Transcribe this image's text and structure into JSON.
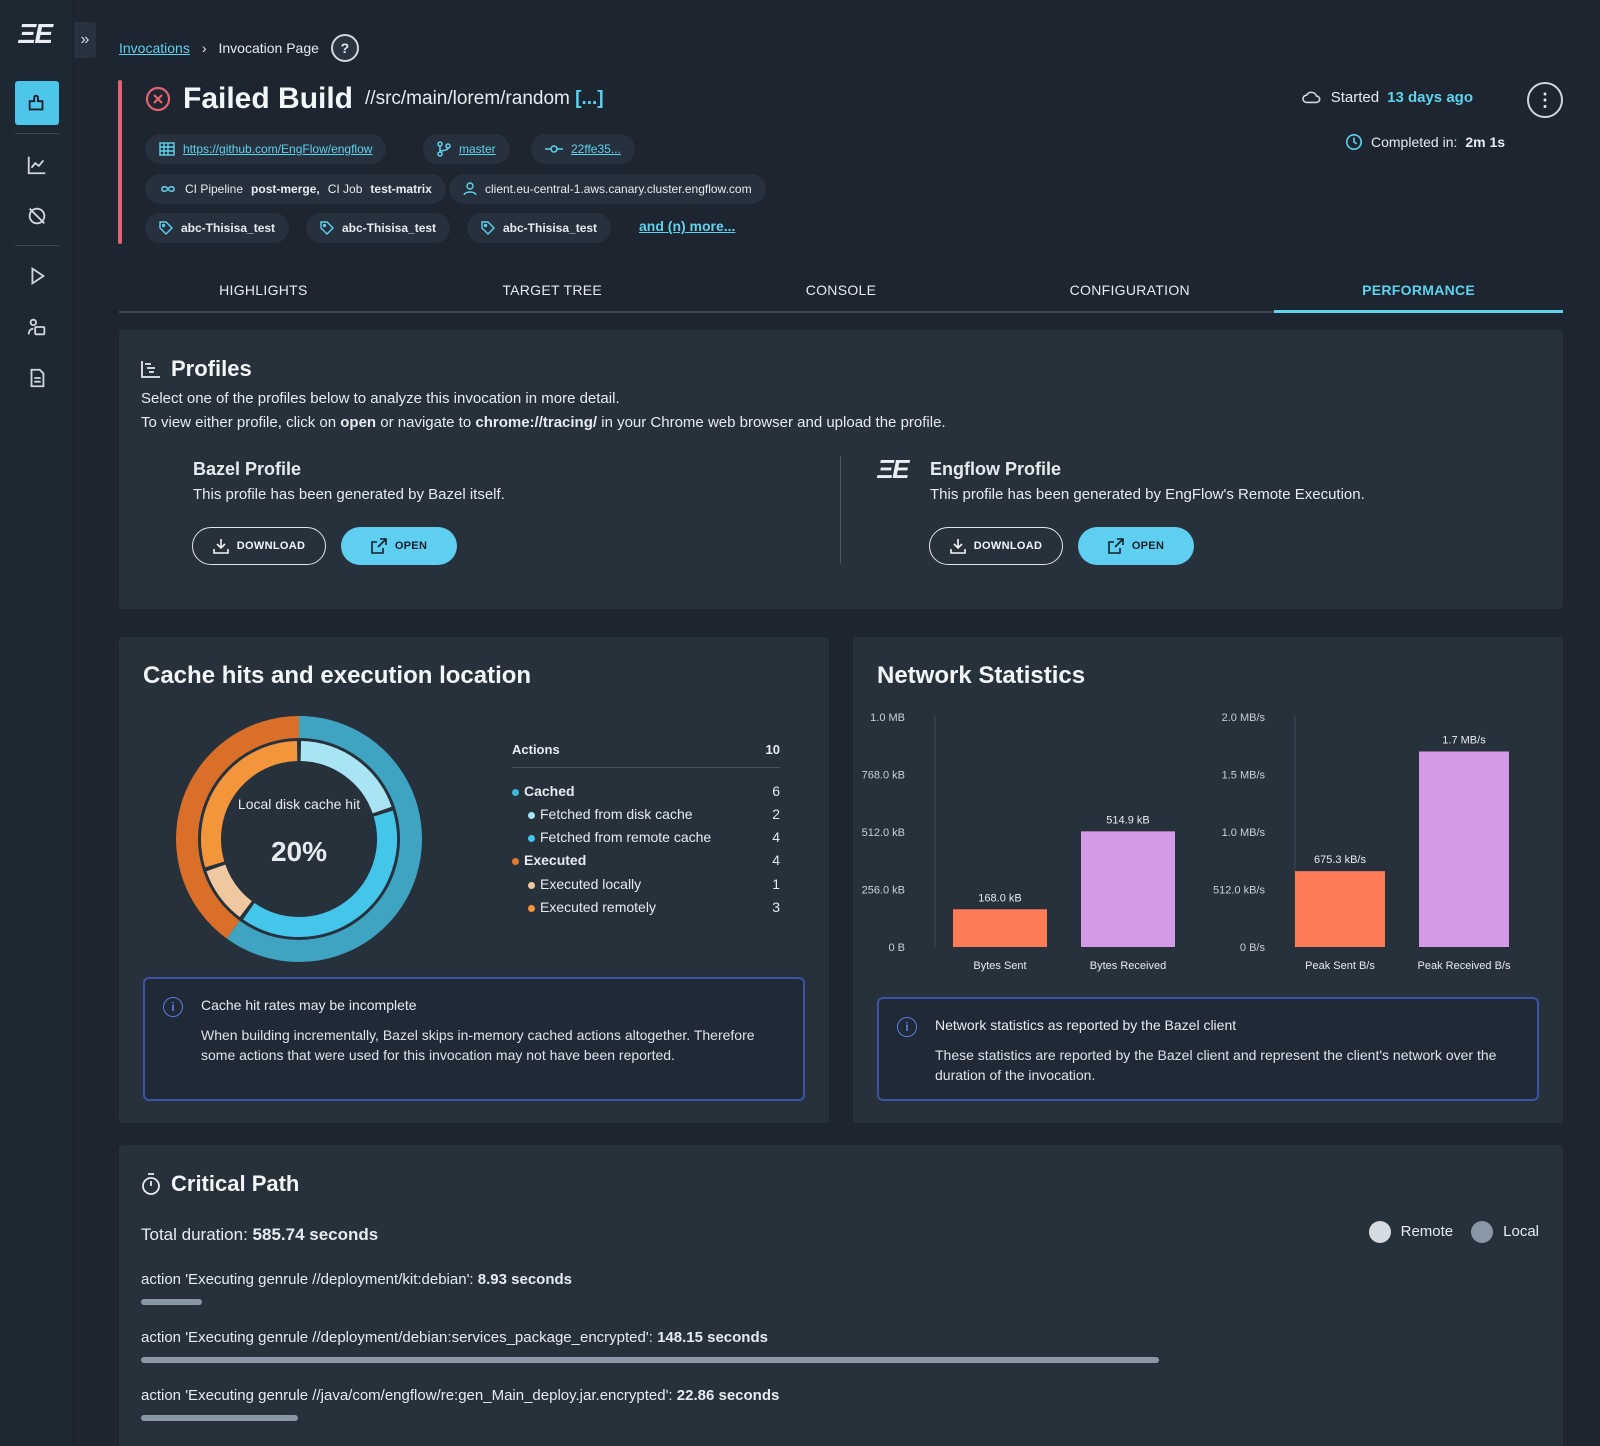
{
  "app": {
    "logo": "ΞE"
  },
  "breadcrumb": {
    "link": "Invocations",
    "current": "Invocation Page",
    "help": "?"
  },
  "header": {
    "title": "Failed Build",
    "path": "//src/main/lorem/random",
    "path_more": "[...]",
    "started_label": "Started",
    "started_value": "13 days ago",
    "completed_label": "Completed in:",
    "completed_value": "2m 1s",
    "repo_url": "https://github.com/EngFlow/engflow",
    "branch": "master",
    "commit": "22ffe35...",
    "ci_text_1": "CI Pipeline",
    "ci_pipeline": "post-merge,",
    "ci_text_2": "CI Job",
    "ci_job": "test-matrix",
    "client": "client.eu-central-1.aws.canary.cluster.engflow.com",
    "tags": [
      "abc-Thisisa_test",
      "abc-Thisisa_test",
      "abc-Thisisa_test"
    ],
    "more_tags": "and (n) more..."
  },
  "tabs": [
    "HIGHLIGHTS",
    "TARGET TREE",
    "CONSOLE",
    "CONFIGURATION",
    "PERFORMANCE"
  ],
  "profiles": {
    "title": "Profiles",
    "line1": "Select one of the profiles below to analyze this invocation in more detail.",
    "line2_a": "To view either profile, click on",
    "line2_b": "open",
    "line2_c": "or navigate to",
    "line2_d": "chrome://tracing/",
    "line2_e": "in your Chrome web browser and upload the profile.",
    "bazel_title": "Bazel Profile",
    "bazel_desc": "This profile has been generated by Bazel itself.",
    "engflow_title": "Engflow Profile",
    "engflow_desc": "This profile has been generated by EngFlow's Remote Execution.",
    "download": "DOWNLOAD",
    "open": "OPEN"
  },
  "cache": {
    "title": "Cache hits and execution location",
    "donut_label": "Local disk cache hit",
    "donut_value": "20%",
    "actions_label": "Actions",
    "actions_total": "10",
    "rows": [
      {
        "label": "Cached",
        "value": "6",
        "bold": true,
        "color": "#3fb7d8"
      },
      {
        "label": "Fetched from disk cache",
        "value": "2",
        "bold": false,
        "color": "#a8e4f4"
      },
      {
        "label": "Fetched from remote cache",
        "value": "4",
        "bold": false,
        "color": "#43c6ea"
      },
      {
        "label": "Executed",
        "value": "4",
        "bold": true,
        "color": "#e07a2e"
      },
      {
        "label": "Executed locally",
        "value": "1",
        "bold": false,
        "color": "#f0c8a0"
      },
      {
        "label": "Executed remotely",
        "value": "3",
        "bold": false,
        "color": "#f3953a"
      }
    ],
    "info_title": "Cache hit rates may be incomplete",
    "info_body": "When building incrementally, Bazel skips in-memory cached actions altogether. Therefore some actions that were used for this invocation may not have been reported."
  },
  "network": {
    "title": "Network Statistics",
    "info_title": "Network statistics as reported by the Bazel client",
    "info_body": "These statistics are reported by the Bazel client and represent the client's network over the duration of the invocation."
  },
  "chart_data": [
    {
      "type": "bar",
      "categories": [
        "Bytes Sent",
        "Bytes Received"
      ],
      "values": [
        168.0,
        514.9
      ],
      "value_unit": "kB",
      "data_labels": [
        "168.0 kB",
        "514.9 kB"
      ],
      "colors": [
        "#ff7a57",
        "#d49ae6"
      ],
      "yticks": [
        "0 B",
        "256.0 kB",
        "512.0 kB",
        "768.0 kB",
        "1.0 MB"
      ],
      "ylim": [
        0,
        1024
      ]
    },
    {
      "type": "bar",
      "categories": [
        "Peak Sent B/s",
        "Peak Received B/s"
      ],
      "values": [
        675.3,
        1740.8
      ],
      "value_unit": "kB/s",
      "data_labels": [
        "675.3 kB/s",
        "1.7 MB/s"
      ],
      "colors": [
        "#ff7a57",
        "#d49ae6"
      ],
      "yticks": [
        "0 B/s",
        "512.0 kB/s",
        "1.0 MB/s",
        "1.5 MB/s",
        "2.0 MB/s"
      ],
      "ylim": [
        0,
        2048
      ]
    }
  ],
  "critical_path": {
    "title": "Critical Path",
    "total_label": "Total duration:",
    "total_value": "585.74 seconds",
    "legend_remote": "Remote",
    "legend_local": "Local",
    "actions": [
      {
        "label": "action 'Executing genrule //deployment/kit:debian':",
        "value": "8.93 seconds",
        "seconds": 8.93
      },
      {
        "label": "action 'Executing genrule //deployment/debian:services_package_encrypted':",
        "value": "148.15 seconds",
        "seconds": 148.15
      },
      {
        "label": "action 'Executing genrule //java/com/engflow/re:gen_Main_deploy.jar.encrypted':",
        "value": "22.86 seconds",
        "seconds": 22.86
      }
    ]
  }
}
